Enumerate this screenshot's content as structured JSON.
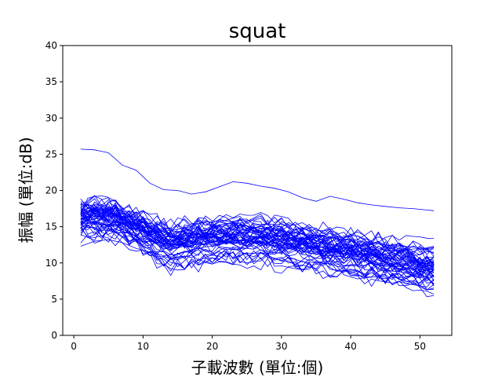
{
  "chart_data": {
    "type": "line",
    "title": "squat",
    "xlabel": "子載波數 (單位:個)",
    "ylabel": "振幅 (單位:dB)",
    "xlim": [
      -1.6,
      54.6
    ],
    "ylim": [
      0,
      40
    ],
    "x_ticks": [
      0,
      10,
      20,
      30,
      40,
      50
    ],
    "y_ticks": [
      0,
      5,
      10,
      15,
      20,
      25,
      30,
      35,
      40
    ],
    "grid": false,
    "line_color": "#0000ff",
    "x": [
      1,
      52
    ],
    "series_count": 60,
    "representative_series": [
      {
        "x": [
          1,
          3,
          5,
          7,
          9,
          11,
          13,
          15,
          17,
          19,
          21,
          23,
          25,
          27,
          29,
          31,
          33,
          35,
          37,
          39,
          41,
          43,
          45,
          47,
          49,
          51,
          52
        ],
        "values": [
          25.7,
          25.6,
          25.2,
          23.5,
          22.8,
          21.0,
          20.1,
          20.0,
          19.5,
          19.8,
          20.5,
          21.2,
          21.0,
          20.6,
          20.3,
          19.8,
          19.0,
          18.5,
          19.2,
          18.8,
          18.3,
          18.0,
          17.8,
          17.6,
          17.5,
          17.3,
          17.2
        ]
      },
      {
        "x": [
          1,
          3,
          5,
          7,
          9,
          11,
          13,
          15,
          17,
          19,
          21,
          23,
          25,
          27,
          29,
          31,
          33,
          35,
          37,
          39,
          41,
          43,
          45,
          47,
          49,
          51,
          52
        ],
        "values": [
          17.0,
          17.5,
          17.2,
          16.0,
          15.0,
          14.0,
          13.5,
          13.8,
          14.2,
          14.5,
          15.0,
          15.3,
          15.1,
          14.8,
          14.5,
          14.2,
          14.0,
          13.8,
          13.5,
          13.2,
          13.0,
          12.8,
          12.5,
          12.3,
          12.2,
          12.0,
          12.1
        ]
      },
      {
        "x": [
          1,
          3,
          5,
          7,
          9,
          11,
          13,
          15,
          17,
          19,
          21,
          23,
          25,
          27,
          29,
          31,
          33,
          35,
          37,
          39,
          41,
          43,
          45,
          47,
          49,
          51,
          52
        ],
        "values": [
          12.3,
          13.0,
          13.2,
          12.8,
          12.0,
          11.5,
          11.0,
          11.2,
          11.8,
          12.2,
          12.5,
          13.0,
          13.2,
          12.8,
          12.4,
          12.0,
          11.6,
          11.2,
          11.0,
          10.8,
          10.5,
          10.2,
          9.8,
          9.5,
          9.2,
          9.0,
          9.1
        ]
      }
    ]
  }
}
